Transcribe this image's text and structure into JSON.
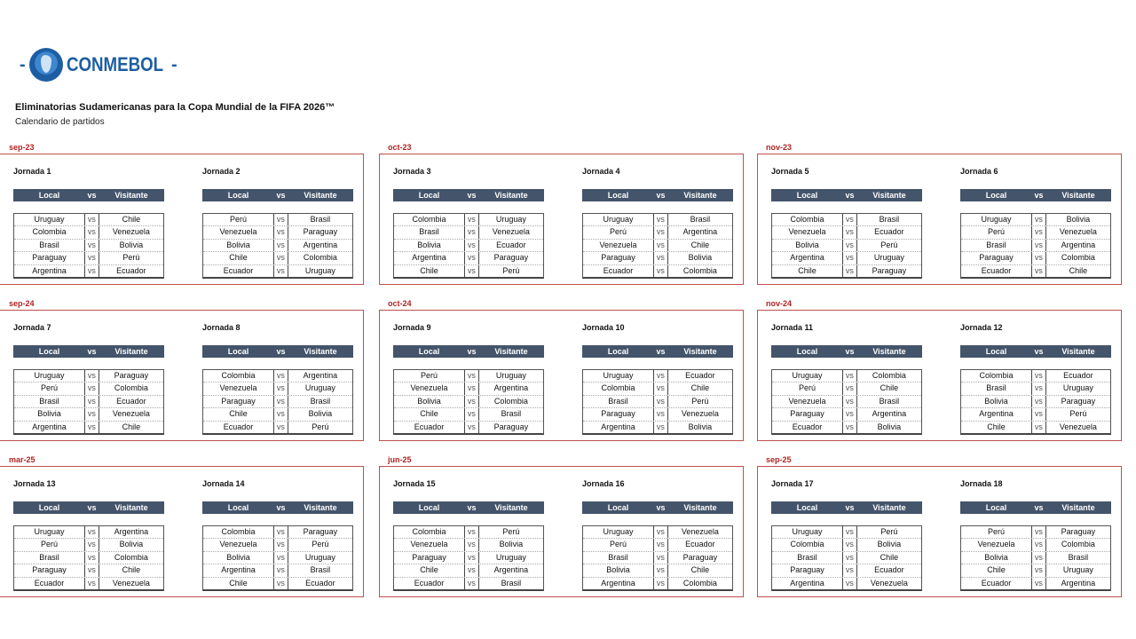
{
  "logo": {
    "text": "CONMEBOL",
    "brand_color": "#1d5ea3"
  },
  "title": "Eliminatorias Sudamericanas para la Copa Mundial de la FIFA 2026™",
  "subtitle": "Calendario de partidos",
  "header": {
    "local": "Local",
    "vs": "vs",
    "visitante": "Visitante"
  },
  "vs_label": "vs",
  "months": [
    {
      "label": "sep-23",
      "jornadas": [
        {
          "label": "Jornada 1",
          "matches": [
            [
              "Uruguay",
              "Chile"
            ],
            [
              "Colombia",
              "Venezuela"
            ],
            [
              "Brasil",
              "Bolivia"
            ],
            [
              "Paraguay",
              "Perú"
            ],
            [
              "Argentina",
              "Ecuador"
            ]
          ]
        },
        {
          "label": "Jornada 2",
          "matches": [
            [
              "Perú",
              "Brasil"
            ],
            [
              "Venezuela",
              "Paraguay"
            ],
            [
              "Bolivia",
              "Argentina"
            ],
            [
              "Chile",
              "Colombia"
            ],
            [
              "Ecuador",
              "Uruguay"
            ]
          ]
        }
      ]
    },
    {
      "label": "oct-23",
      "jornadas": [
        {
          "label": "Jornada 3",
          "matches": [
            [
              "Colombia",
              "Uruguay"
            ],
            [
              "Brasil",
              "Venezuela"
            ],
            [
              "Bolivia",
              "Ecuador"
            ],
            [
              "Argentina",
              "Paraguay"
            ],
            [
              "Chile",
              "Perú"
            ]
          ]
        },
        {
          "label": "Jornada 4",
          "matches": [
            [
              "Uruguay",
              "Brasil"
            ],
            [
              "Perú",
              "Argentina"
            ],
            [
              "Venezuela",
              "Chile"
            ],
            [
              "Paraguay",
              "Bolivia"
            ],
            [
              "Ecuador",
              "Colombia"
            ]
          ]
        }
      ]
    },
    {
      "label": "nov-23",
      "jornadas": [
        {
          "label": "Jornada 5",
          "matches": [
            [
              "Colombia",
              "Brasil"
            ],
            [
              "Venezuela",
              "Ecuador"
            ],
            [
              "Bolivia",
              "Perú"
            ],
            [
              "Argentina",
              "Uruguay"
            ],
            [
              "Chile",
              "Paraguay"
            ]
          ]
        },
        {
          "label": "Jornada 6",
          "matches": [
            [
              "Uruguay",
              "Bolivia"
            ],
            [
              "Perú",
              "Venezuela"
            ],
            [
              "Brasil",
              "Argentina"
            ],
            [
              "Paraguay",
              "Colombia"
            ],
            [
              "Ecuador",
              "Chile"
            ]
          ]
        }
      ]
    },
    {
      "label": "sep-24",
      "jornadas": [
        {
          "label": "Jornada 7",
          "matches": [
            [
              "Uruguay",
              "Paraguay"
            ],
            [
              "Perú",
              "Colombia"
            ],
            [
              "Brasil",
              "Ecuador"
            ],
            [
              "Bolivia",
              "Venezuela"
            ],
            [
              "Argentina",
              "Chile"
            ]
          ]
        },
        {
          "label": "Jornada 8",
          "matches": [
            [
              "Colombia",
              "Argentina"
            ],
            [
              "Venezuela",
              "Uruguay"
            ],
            [
              "Paraguay",
              "Brasil"
            ],
            [
              "Chile",
              "Bolivia"
            ],
            [
              "Ecuador",
              "Perú"
            ]
          ]
        }
      ]
    },
    {
      "label": "oct-24",
      "jornadas": [
        {
          "label": "Jornada 9",
          "matches": [
            [
              "Perú",
              "Uruguay"
            ],
            [
              "Venezuela",
              "Argentina"
            ],
            [
              "Bolivia",
              "Colombia"
            ],
            [
              "Chile",
              "Brasil"
            ],
            [
              "Ecuador",
              "Paraguay"
            ]
          ]
        },
        {
          "label": "Jornada 10",
          "matches": [
            [
              "Uruguay",
              "Ecuador"
            ],
            [
              "Colombia",
              "Chile"
            ],
            [
              "Brasil",
              "Perú"
            ],
            [
              "Paraguay",
              "Venezuela"
            ],
            [
              "Argentina",
              "Bolivia"
            ]
          ]
        }
      ]
    },
    {
      "label": "nov-24",
      "jornadas": [
        {
          "label": "Jornada 11",
          "matches": [
            [
              "Uruguay",
              "Colombia"
            ],
            [
              "Perú",
              "Chile"
            ],
            [
              "Venezuela",
              "Brasil"
            ],
            [
              "Paraguay",
              "Argentina"
            ],
            [
              "Ecuador",
              "Bolivia"
            ]
          ]
        },
        {
          "label": "Jornada 12",
          "matches": [
            [
              "Colombia",
              "Ecuador"
            ],
            [
              "Brasil",
              "Uruguay"
            ],
            [
              "Bolivia",
              "Paraguay"
            ],
            [
              "Argentina",
              "Perú"
            ],
            [
              "Chile",
              "Venezuela"
            ]
          ]
        }
      ]
    },
    {
      "label": "mar-25",
      "jornadas": [
        {
          "label": "Jornada 13",
          "matches": [
            [
              "Uruguay",
              "Argentina"
            ],
            [
              "Perú",
              "Bolivia"
            ],
            [
              "Brasil",
              "Colombia"
            ],
            [
              "Paraguay",
              "Chile"
            ],
            [
              "Ecuador",
              "Venezuela"
            ]
          ]
        },
        {
          "label": "Jornada 14",
          "matches": [
            [
              "Colombia",
              "Paraguay"
            ],
            [
              "Venezuela",
              "Perú"
            ],
            [
              "Bolivia",
              "Uruguay"
            ],
            [
              "Argentina",
              "Brasil"
            ],
            [
              "Chile",
              "Ecuador"
            ]
          ]
        }
      ]
    },
    {
      "label": "jun-25",
      "jornadas": [
        {
          "label": "Jornada 15",
          "matches": [
            [
              "Colombia",
              "Perú"
            ],
            [
              "Venezuela",
              "Bolivia"
            ],
            [
              "Paraguay",
              "Uruguay"
            ],
            [
              "Chile",
              "Argentina"
            ],
            [
              "Ecuador",
              "Brasil"
            ]
          ]
        },
        {
          "label": "Jornada 16",
          "matches": [
            [
              "Uruguay",
              "Venezuela"
            ],
            [
              "Perú",
              "Ecuador"
            ],
            [
              "Brasil",
              "Paraguay"
            ],
            [
              "Bolivia",
              "Chile"
            ],
            [
              "Argentina",
              "Colombia"
            ]
          ]
        }
      ]
    },
    {
      "label": "sep-25",
      "jornadas": [
        {
          "label": "Jornada 17",
          "matches": [
            [
              "Uruguay",
              "Perú"
            ],
            [
              "Colombia",
              "Bolivia"
            ],
            [
              "Brasil",
              "Chile"
            ],
            [
              "Paraguay",
              "Ecuador"
            ],
            [
              "Argentina",
              "Venezuela"
            ]
          ]
        },
        {
          "label": "Jornada 18",
          "matches": [
            [
              "Perú",
              "Paraguay"
            ],
            [
              "Venezuela",
              "Colombia"
            ],
            [
              "Bolivia",
              "Brasil"
            ],
            [
              "Chile",
              "Uruguay"
            ],
            [
              "Ecuador",
              "Argentina"
            ]
          ]
        }
      ]
    }
  ]
}
